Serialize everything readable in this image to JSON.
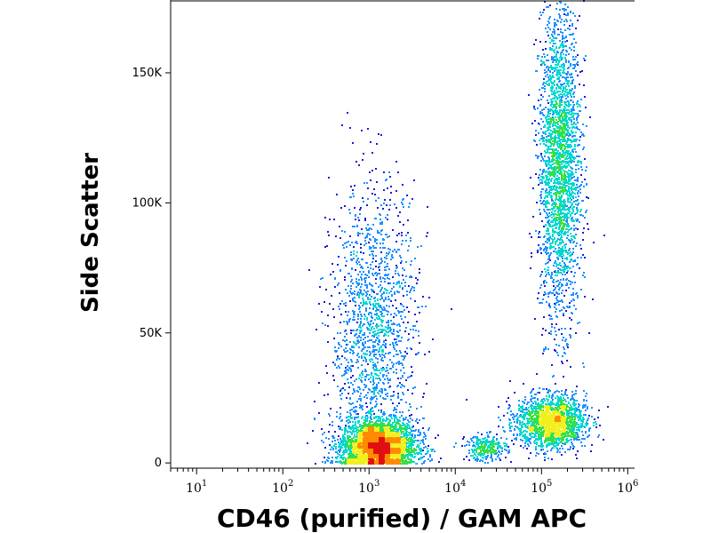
{
  "chart_data": {
    "type": "scatter",
    "subtype": "flow-cytometry density dot plot",
    "xlabel": "CD46 (purified) / GAM APC",
    "ylabel": "Side Scatter",
    "x_scale": "log",
    "xlim": [
      5,
      1200000
    ],
    "ylim": [
      -2000,
      178000
    ],
    "x_ticks": [
      {
        "base": "10",
        "exp": "1",
        "value": 10
      },
      {
        "base": "10",
        "exp": "2",
        "value": 100
      },
      {
        "base": "10",
        "exp": "3",
        "value": 1000
      },
      {
        "base": "10",
        "exp": "4",
        "value": 10000
      },
      {
        "base": "10",
        "exp": "5",
        "value": 100000
      },
      {
        "base": "10",
        "exp": "6",
        "value": 1000000
      }
    ],
    "y_ticks": [
      {
        "label": "0",
        "value": 0
      },
      {
        "label": "50K",
        "value": 50000
      },
      {
        "label": "100K",
        "value": 100000
      },
      {
        "label": "150K",
        "value": 150000
      }
    ],
    "grid": false,
    "legend": "none",
    "color_scale": [
      "#1a1ad8",
      "#1e90ff",
      "#00d8d0",
      "#33e048",
      "#f2ef1f",
      "#ff8c00",
      "#e01010"
    ],
    "populations": [
      {
        "log10_x_center": 3.1,
        "log10_x_sd": 0.22,
        "y_center": 7000,
        "y_sd": 5000,
        "events": 3200
      },
      {
        "log10_x_center": 3.05,
        "log10_x_sd": 0.25,
        "y_center": 50000,
        "y_sd": 28000,
        "events": 1600
      },
      {
        "log10_x_center": 4.35,
        "log10_x_sd": 0.12,
        "y_center": 6000,
        "y_sd": 2500,
        "events": 300
      },
      {
        "log10_x_center": 5.1,
        "log10_x_sd": 0.2,
        "y_center": 16000,
        "y_sd": 5000,
        "events": 1800
      },
      {
        "log10_x_center": 5.2,
        "log10_x_sd": 0.12,
        "y_center": 115000,
        "y_sd": 30000,
        "events": 2600
      }
    ]
  }
}
